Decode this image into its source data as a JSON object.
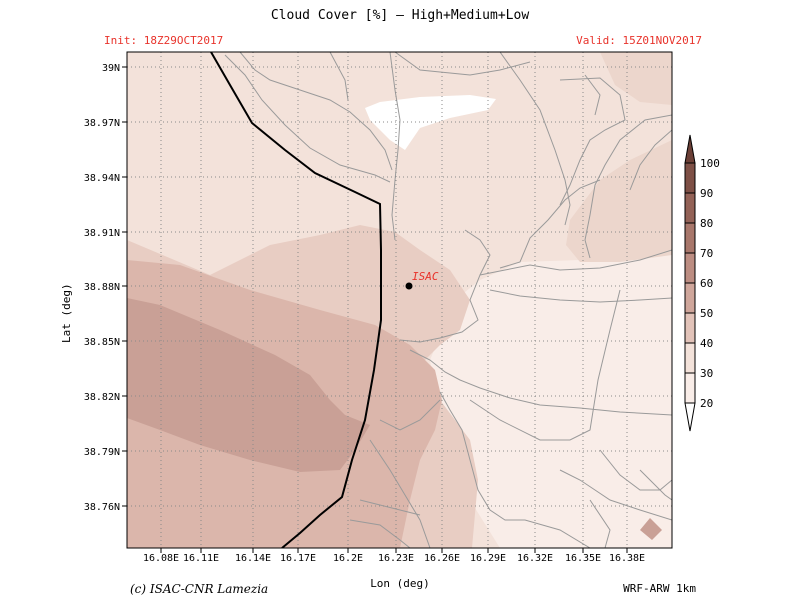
{
  "header": {
    "title": "Cloud Cover [%] — High+Medium+Low",
    "init": "Init: 18Z29OCT2017",
    "valid": "Valid: 15Z01NOV2017"
  },
  "axes": {
    "xlabel": "Lon (deg)",
    "ylabel": "Lat (deg)",
    "lat_ticks": [
      "39N",
      "38.97N",
      "38.94N",
      "38.91N",
      "38.88N",
      "38.85N",
      "38.82N",
      "38.79N",
      "38.76N"
    ],
    "lon_ticks": [
      "16.08E",
      "16.11E",
      "16.14E",
      "16.17E",
      "16.2E",
      "16.23E",
      "16.26E",
      "16.29E",
      "16.32E",
      "16.35E",
      "16.38E"
    ]
  },
  "marker": {
    "label": "ISAC",
    "color": "#e8332b"
  },
  "colorbar": {
    "levels": [
      "100",
      "90",
      "80",
      "70",
      "60",
      "50",
      "40",
      "30",
      "20"
    ],
    "colors": [
      "#6b3f36",
      "#7e5046",
      "#936257",
      "#a8776b",
      "#bc8d82",
      "#cfa69b",
      "#e2c3b9",
      "#f3e2da",
      "#ffffff"
    ]
  },
  "footer": {
    "copyright": "(c) ISAC-CNR Lamezia",
    "model": "WRF-ARW 1km"
  }
}
